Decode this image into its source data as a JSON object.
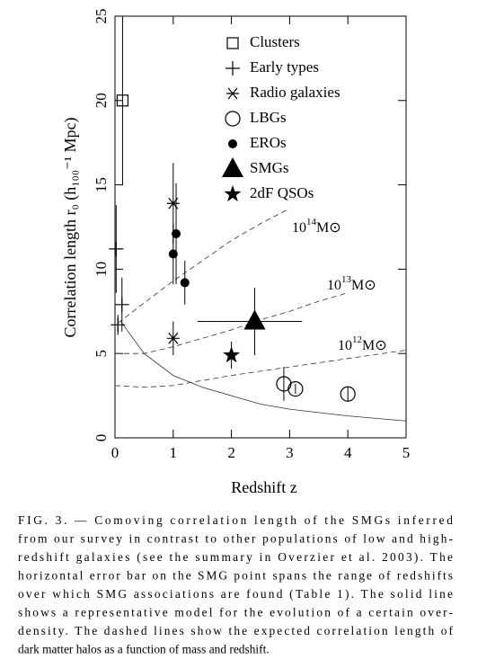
{
  "chart_data": {
    "type": "scatter",
    "x_label": "Redshift z",
    "y_label": "Correlation length r₀ (h₁₀₀⁻¹ Mpc)",
    "xlim": [
      0,
      5
    ],
    "ylim": [
      0,
      25
    ],
    "xticks": [
      0,
      1,
      2,
      3,
      4,
      5
    ],
    "yticks": [
      0,
      5,
      10,
      15,
      20,
      25
    ],
    "color": "#000000",
    "series": [
      {
        "name": "Clusters",
        "marker": "square-open",
        "x": [
          0.13
        ],
        "values": [
          20
        ],
        "yerr": [
          5
        ]
      },
      {
        "name": "Early types",
        "marker": "plus",
        "x": [
          0.02,
          0.12,
          0.05
        ],
        "values": [
          11.2,
          7.9,
          6.7
        ],
        "yerr": [
          2.6,
          1.6,
          0.6
        ]
      },
      {
        "name": "Radio galaxies",
        "marker": "asterisk",
        "x": [
          1.0,
          1.0
        ],
        "values": [
          13.9,
          5.9
        ],
        "yerr": [
          2.4,
          1.0
        ]
      },
      {
        "name": "LBGs",
        "marker": "circle-open",
        "x": [
          2.9,
          3.1,
          4.0
        ],
        "values": [
          3.2,
          2.9,
          2.6
        ],
        "yerr": [
          1.0,
          0.3,
          0.4
        ]
      },
      {
        "name": "EROs",
        "marker": "dot",
        "x": [
          1.0,
          1.05,
          1.2
        ],
        "values": [
          10.9,
          12.1,
          9.2
        ],
        "yerr": [
          1.8,
          3.0,
          1.3
        ]
      },
      {
        "name": "SMGs",
        "marker": "triangle",
        "x": [
          2.4
        ],
        "values": [
          6.9
        ],
        "yerr": [
          2.0
        ],
        "xerr_minus": [
          0.98
        ],
        "xerr_plus": [
          0.81
        ]
      },
      {
        "name": "2dF QSOs",
        "marker": "star",
        "x": [
          2.0
        ],
        "values": [
          4.9
        ],
        "yerr": [
          0.8
        ]
      }
    ],
    "curves": [
      {
        "style": "dashed",
        "label": {
          "base": "10",
          "exp": "14",
          "unit": "M⊙"
        },
        "x": [
          0.05,
          0.5,
          1,
          1.5,
          2,
          2.5,
          3
        ],
        "values": [
          6.8,
          8.0,
          9.3,
          10.5,
          11.7,
          12.7,
          13.6
        ]
      },
      {
        "style": "dashed",
        "label": {
          "base": "10",
          "exp": "13",
          "unit": "M⊙"
        },
        "x": [
          0,
          0.5,
          1,
          1.5,
          2,
          2.5,
          3,
          3.5,
          4
        ],
        "values": [
          5.0,
          5.0,
          5.4,
          5.9,
          6.4,
          7.0,
          7.5,
          8.1,
          8.6
        ]
      },
      {
        "style": "dashed",
        "label": {
          "base": "10",
          "exp": "12",
          "unit": "M⊙"
        },
        "x": [
          0,
          0.5,
          1,
          1.5,
          2,
          3,
          4,
          5
        ],
        "values": [
          3.1,
          3.0,
          3.1,
          3.4,
          3.7,
          4.2,
          4.7,
          5.2
        ]
      },
      {
        "style": "solid",
        "x": [
          0.1,
          0.5,
          1,
          1.5,
          2,
          2.5,
          3,
          4,
          5
        ],
        "values": [
          6.9,
          5.0,
          3.7,
          3.0,
          2.5,
          2.0,
          1.7,
          1.3,
          1.0
        ]
      }
    ]
  },
  "caption": {
    "lines": [
      "FIG. 3. — Comoving correlation length of the SMGs inferred",
      "from our survey in contrast to other populations of low and high-",
      "redshift galaxies (see the summary in Overzier et al. 2003). The",
      "horizontal error bar on the SMG point spans the range of redshifts",
      "over which SMG associations are found (Table 1). The solid line",
      "shows a representative model for the evolution of a certain over-",
      "density. The dashed lines show the expected correlation length of",
      "dark matter halos as a function of mass and redshift."
    ]
  }
}
